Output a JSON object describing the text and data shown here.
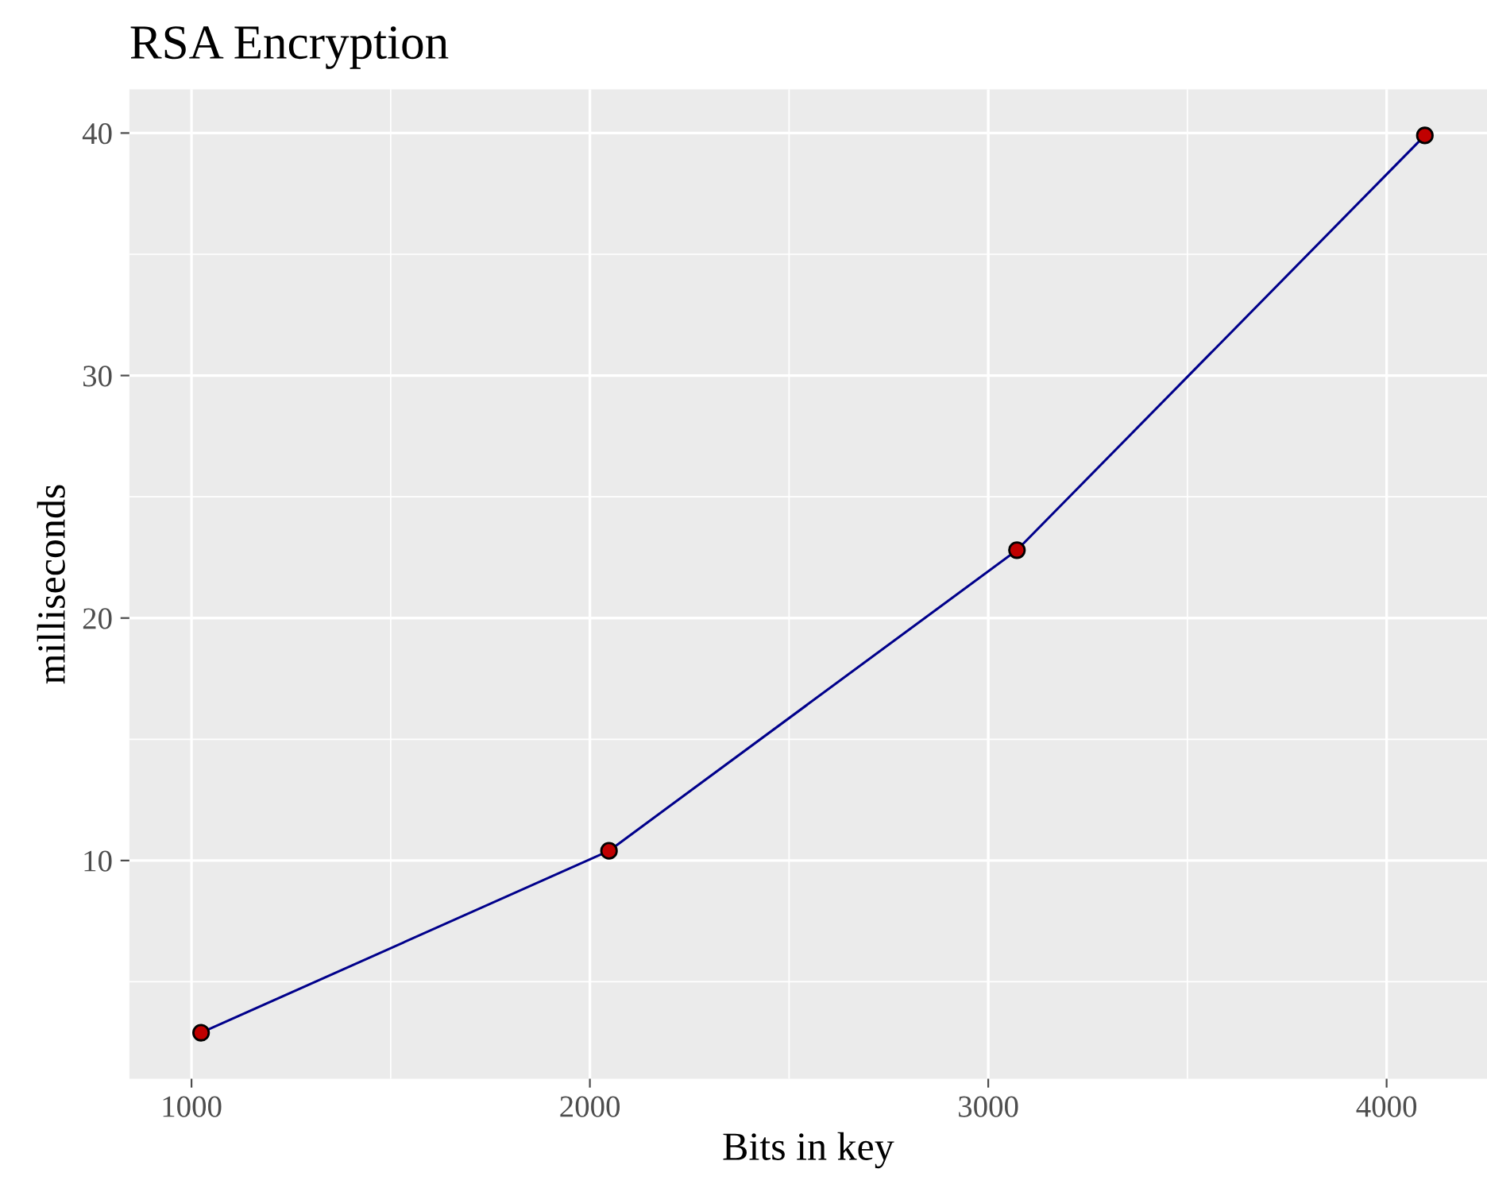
{
  "chart_data": {
    "type": "line",
    "title": "RSA Encryption",
    "xlabel": "Bits in key",
    "ylabel": "milliseconds",
    "x": [
      1024,
      2048,
      3072,
      4096
    ],
    "series": [
      {
        "color": "#00008b",
        "values": [
          2.9,
          10.4,
          22.8,
          39.9
        ]
      }
    ],
    "marker": "circle",
    "line_style": "solid",
    "grid": true,
    "xlim": [
      844,
      4252
    ],
    "xticks": [
      1000,
      2000,
      3000,
      4000
    ],
    "ylim": [
      1.0,
      41.8
    ],
    "yticks": [
      10,
      20,
      30,
      40
    ]
  }
}
